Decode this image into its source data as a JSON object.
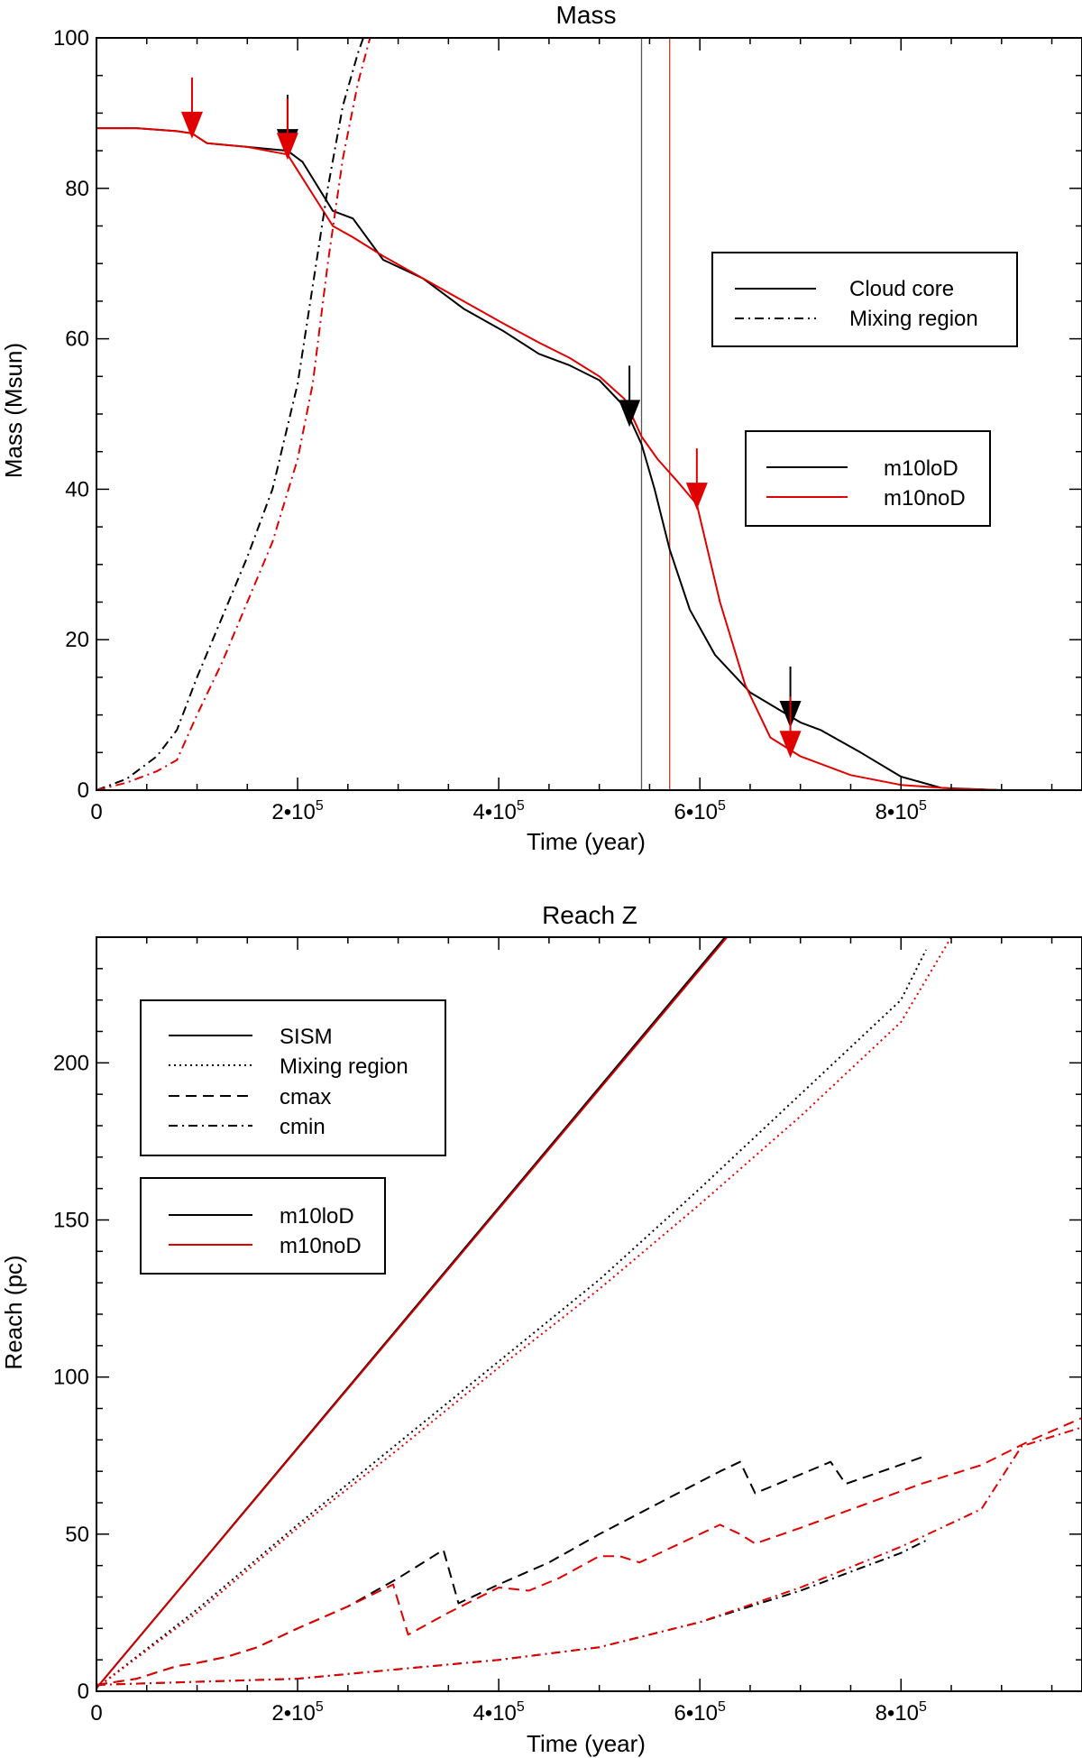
{
  "chart_data": [
    {
      "type": "line",
      "title": "Mass",
      "xlabel": "Time (year)",
      "ylabel": "Mass (Msun)",
      "xlim": [
        0,
        980000
      ],
      "ylim": [
        0,
        100
      ],
      "x_ticks": [
        {
          "value": 0,
          "base": "0",
          "exp": ""
        },
        {
          "value": 200000,
          "base": "2•10",
          "exp": "5"
        },
        {
          "value": 400000,
          "base": "4•10",
          "exp": "5"
        },
        {
          "value": 600000,
          "base": "6•10",
          "exp": "5"
        },
        {
          "value": 800000,
          "base": "8•10",
          "exp": "5"
        }
      ],
      "y_ticks": [
        0,
        20,
        40,
        60,
        80,
        100
      ],
      "vertical_lines": [
        {
          "x": 542000,
          "color": "#555555"
        },
        {
          "x": 570000,
          "color": "#c0392b"
        }
      ],
      "legends": [
        {
          "position": "upper-right",
          "entries": [
            {
              "label": "Cloud core",
              "style": "solid",
              "color": "#000000"
            },
            {
              "label": "Mixing region",
              "style": "dashdot",
              "color": "#000000"
            }
          ]
        },
        {
          "position": "middle-right",
          "entries": [
            {
              "label": "m10loD",
              "style": "solid",
              "color": "#000000"
            },
            {
              "label": "m10noD",
              "style": "solid",
              "color": "#e00000"
            }
          ]
        }
      ],
      "series": [
        {
          "name": "m10loD Cloud core",
          "color": "#000000",
          "style": "solid",
          "x": [
            0,
            40000,
            80000,
            95000,
            110000,
            150000,
            190000,
            205000,
            235000,
            255000,
            285000,
            325000,
            365000,
            405000,
            440000,
            470000,
            500000,
            525000,
            542000,
            555000,
            570000,
            590000,
            615000,
            650000,
            700000,
            720000,
            760000,
            800000,
            840000,
            900000,
            980000
          ],
          "y": [
            88,
            88,
            87.6,
            87.3,
            86,
            85.5,
            85,
            83.5,
            77,
            76,
            70.5,
            68,
            64,
            61,
            58,
            56.5,
            54.5,
            51,
            46,
            40,
            32,
            24,
            18,
            13,
            9,
            8,
            5,
            1.8,
            0.3,
            0,
            0
          ]
        },
        {
          "name": "m10noD Cloud core",
          "color": "#e00000",
          "style": "solid",
          "x": [
            0,
            40000,
            80000,
            95000,
            110000,
            150000,
            190000,
            235000,
            255000,
            285000,
            325000,
            365000,
            405000,
            440000,
            470000,
            500000,
            525000,
            542000,
            558000,
            578000,
            597000,
            620000,
            645000,
            670000,
            700000,
            750000,
            800000,
            850000,
            900000,
            980000
          ],
          "y": [
            88,
            88,
            87.6,
            87.3,
            86,
            85.5,
            84.5,
            75,
            73.5,
            71,
            68,
            65,
            62,
            59.5,
            57.5,
            55,
            52,
            47,
            44,
            41,
            38,
            25,
            14,
            7,
            4.5,
            2,
            0.7,
            0.2,
            0,
            0
          ]
        },
        {
          "name": "m10loD Mixing region",
          "color": "#000000",
          "style": "dashdot",
          "x": [
            0,
            30000,
            60000,
            80000,
            100000,
            125000,
            150000,
            175000,
            200000,
            215000,
            230000,
            245000,
            260000,
            268000
          ],
          "y": [
            0,
            1.5,
            4.5,
            8,
            15,
            23,
            31,
            40,
            54,
            67,
            80,
            91,
            98,
            101
          ]
        },
        {
          "name": "m10noD Mixing region",
          "color": "#e00000",
          "style": "dashdot",
          "x": [
            0,
            30000,
            60000,
            80000,
            100000,
            125000,
            150000,
            175000,
            200000,
            215000,
            230000,
            245000,
            260000,
            274000
          ],
          "y": [
            0,
            1,
            2.5,
            4,
            10,
            17,
            25,
            33,
            44,
            54,
            70,
            84,
            94,
            101
          ]
        }
      ],
      "markers": [
        {
          "x": 95000,
          "y": 87.3,
          "color": "#e00000",
          "size": "large"
        },
        {
          "x": 190000,
          "y": 85,
          "color": "#000000",
          "size": "large"
        },
        {
          "x": 190000,
          "y": 84.5,
          "color": "#e00000",
          "size": "large"
        },
        {
          "x": 530000,
          "y": 49,
          "color": "#000000",
          "size": "large"
        },
        {
          "x": 597000,
          "y": 38,
          "color": "#e00000",
          "size": "large"
        },
        {
          "x": 690000,
          "y": 9,
          "color": "#000000",
          "size": "large"
        },
        {
          "x": 690000,
          "y": 5,
          "color": "#e00000",
          "size": "large"
        }
      ]
    },
    {
      "type": "line",
      "title": "Reach Z",
      "xlabel": "Time (year)",
      "ylabel": "Reach (pc)",
      "xlim": [
        0,
        980000
      ],
      "ylim": [
        0,
        240
      ],
      "x_ticks": [
        {
          "value": 0,
          "base": "0",
          "exp": ""
        },
        {
          "value": 200000,
          "base": "2•10",
          "exp": "5"
        },
        {
          "value": 400000,
          "base": "4•10",
          "exp": "5"
        },
        {
          "value": 600000,
          "base": "6•10",
          "exp": "5"
        },
        {
          "value": 800000,
          "base": "8•10",
          "exp": "5"
        }
      ],
      "y_ticks": [
        0,
        50,
        100,
        150,
        200
      ],
      "legends": [
        {
          "position": "upper-left",
          "entries": [
            {
              "label": "SISM",
              "style": "solid",
              "color": "#000000"
            },
            {
              "label": "Mixing region",
              "style": "dotted",
              "color": "#000000"
            },
            {
              "label": "cmax",
              "style": "dashed",
              "color": "#000000"
            },
            {
              "label": "cmin",
              "style": "dashdot",
              "color": "#000000"
            }
          ]
        },
        {
          "position": "middle-left",
          "entries": [
            {
              "label": "m10loD",
              "style": "solid",
              "color": "#000000"
            },
            {
              "label": "m10noD",
              "style": "solid",
              "color": "#e00000"
            }
          ]
        }
      ],
      "series": [
        {
          "name": "m10loD SISM",
          "color": "#000000",
          "style": "solid",
          "x": [
            0,
            625000
          ],
          "y": [
            1,
            240
          ]
        },
        {
          "name": "m10noD SISM",
          "color": "#d00000",
          "style": "solid",
          "x": [
            0,
            627000
          ],
          "y": [
            1,
            240
          ]
        },
        {
          "name": "m10loD Mixing region",
          "color": "#000000",
          "style": "dotted",
          "x": [
            0,
            100000,
            200000,
            300000,
            400000,
            500000,
            600000,
            700000,
            800000,
            825000
          ],
          "y": [
            1,
            26,
            53,
            79,
            105,
            131,
            160,
            190,
            220,
            236
          ]
        },
        {
          "name": "m10noD Mixing region",
          "color": "#e00000",
          "style": "dotted",
          "x": [
            0,
            100000,
            200000,
            300000,
            400000,
            500000,
            600000,
            700000,
            800000,
            850000
          ],
          "y": [
            1,
            25,
            52,
            77,
            103,
            128,
            155,
            183,
            213,
            240
          ]
        },
        {
          "name": "m10loD cmax",
          "color": "#000000",
          "style": "dashed",
          "x": [
            0,
            40000,
            60000,
            80000,
            100000,
            130000,
            160000,
            200000,
            250000,
            300000,
            345000,
            360000,
            400000,
            450000,
            500000,
            560000,
            620000,
            640000,
            655000,
            700000,
            730000,
            745000,
            790000,
            825000
          ],
          "y": [
            2,
            4,
            6,
            8,
            9,
            11,
            14,
            20,
            27,
            36,
            45,
            28,
            34,
            41,
            50,
            60,
            70,
            73,
            63,
            69,
            73,
            66,
            71,
            75
          ]
        },
        {
          "name": "m10noD cmax",
          "color": "#e00000",
          "style": "dashed",
          "x": [
            0,
            40000,
            60000,
            80000,
            100000,
            130000,
            160000,
            200000,
            250000,
            295000,
            310000,
            350000,
            400000,
            430000,
            460000,
            500000,
            520000,
            540000,
            580000,
            620000,
            640000,
            655000,
            700000,
            760000,
            820000,
            880000,
            930000,
            980000
          ],
          "y": [
            2,
            4,
            6,
            8,
            9,
            11,
            14,
            20,
            27,
            34,
            18,
            25,
            33,
            32,
            36,
            43,
            43,
            41,
            47,
            53,
            50,
            47,
            52,
            59,
            66,
            72,
            80,
            87
          ]
        },
        {
          "name": "m10loD cmin",
          "color": "#000000",
          "style": "dashdot",
          "x": [
            0,
            100000,
            200000,
            300000,
            400000,
            500000,
            600000,
            700000,
            800000,
            825000
          ],
          "y": [
            2,
            3,
            4,
            7,
            10,
            14,
            22,
            32,
            44,
            48
          ]
        },
        {
          "name": "m10noD cmin",
          "color": "#e00000",
          "style": "dashdot",
          "x": [
            0,
            100000,
            200000,
            300000,
            400000,
            500000,
            600000,
            700000,
            800000,
            880000,
            920000,
            980000
          ],
          "y": [
            2,
            3,
            4,
            7,
            10,
            14,
            22,
            33,
            46,
            58,
            78,
            84
          ]
        }
      ]
    }
  ]
}
